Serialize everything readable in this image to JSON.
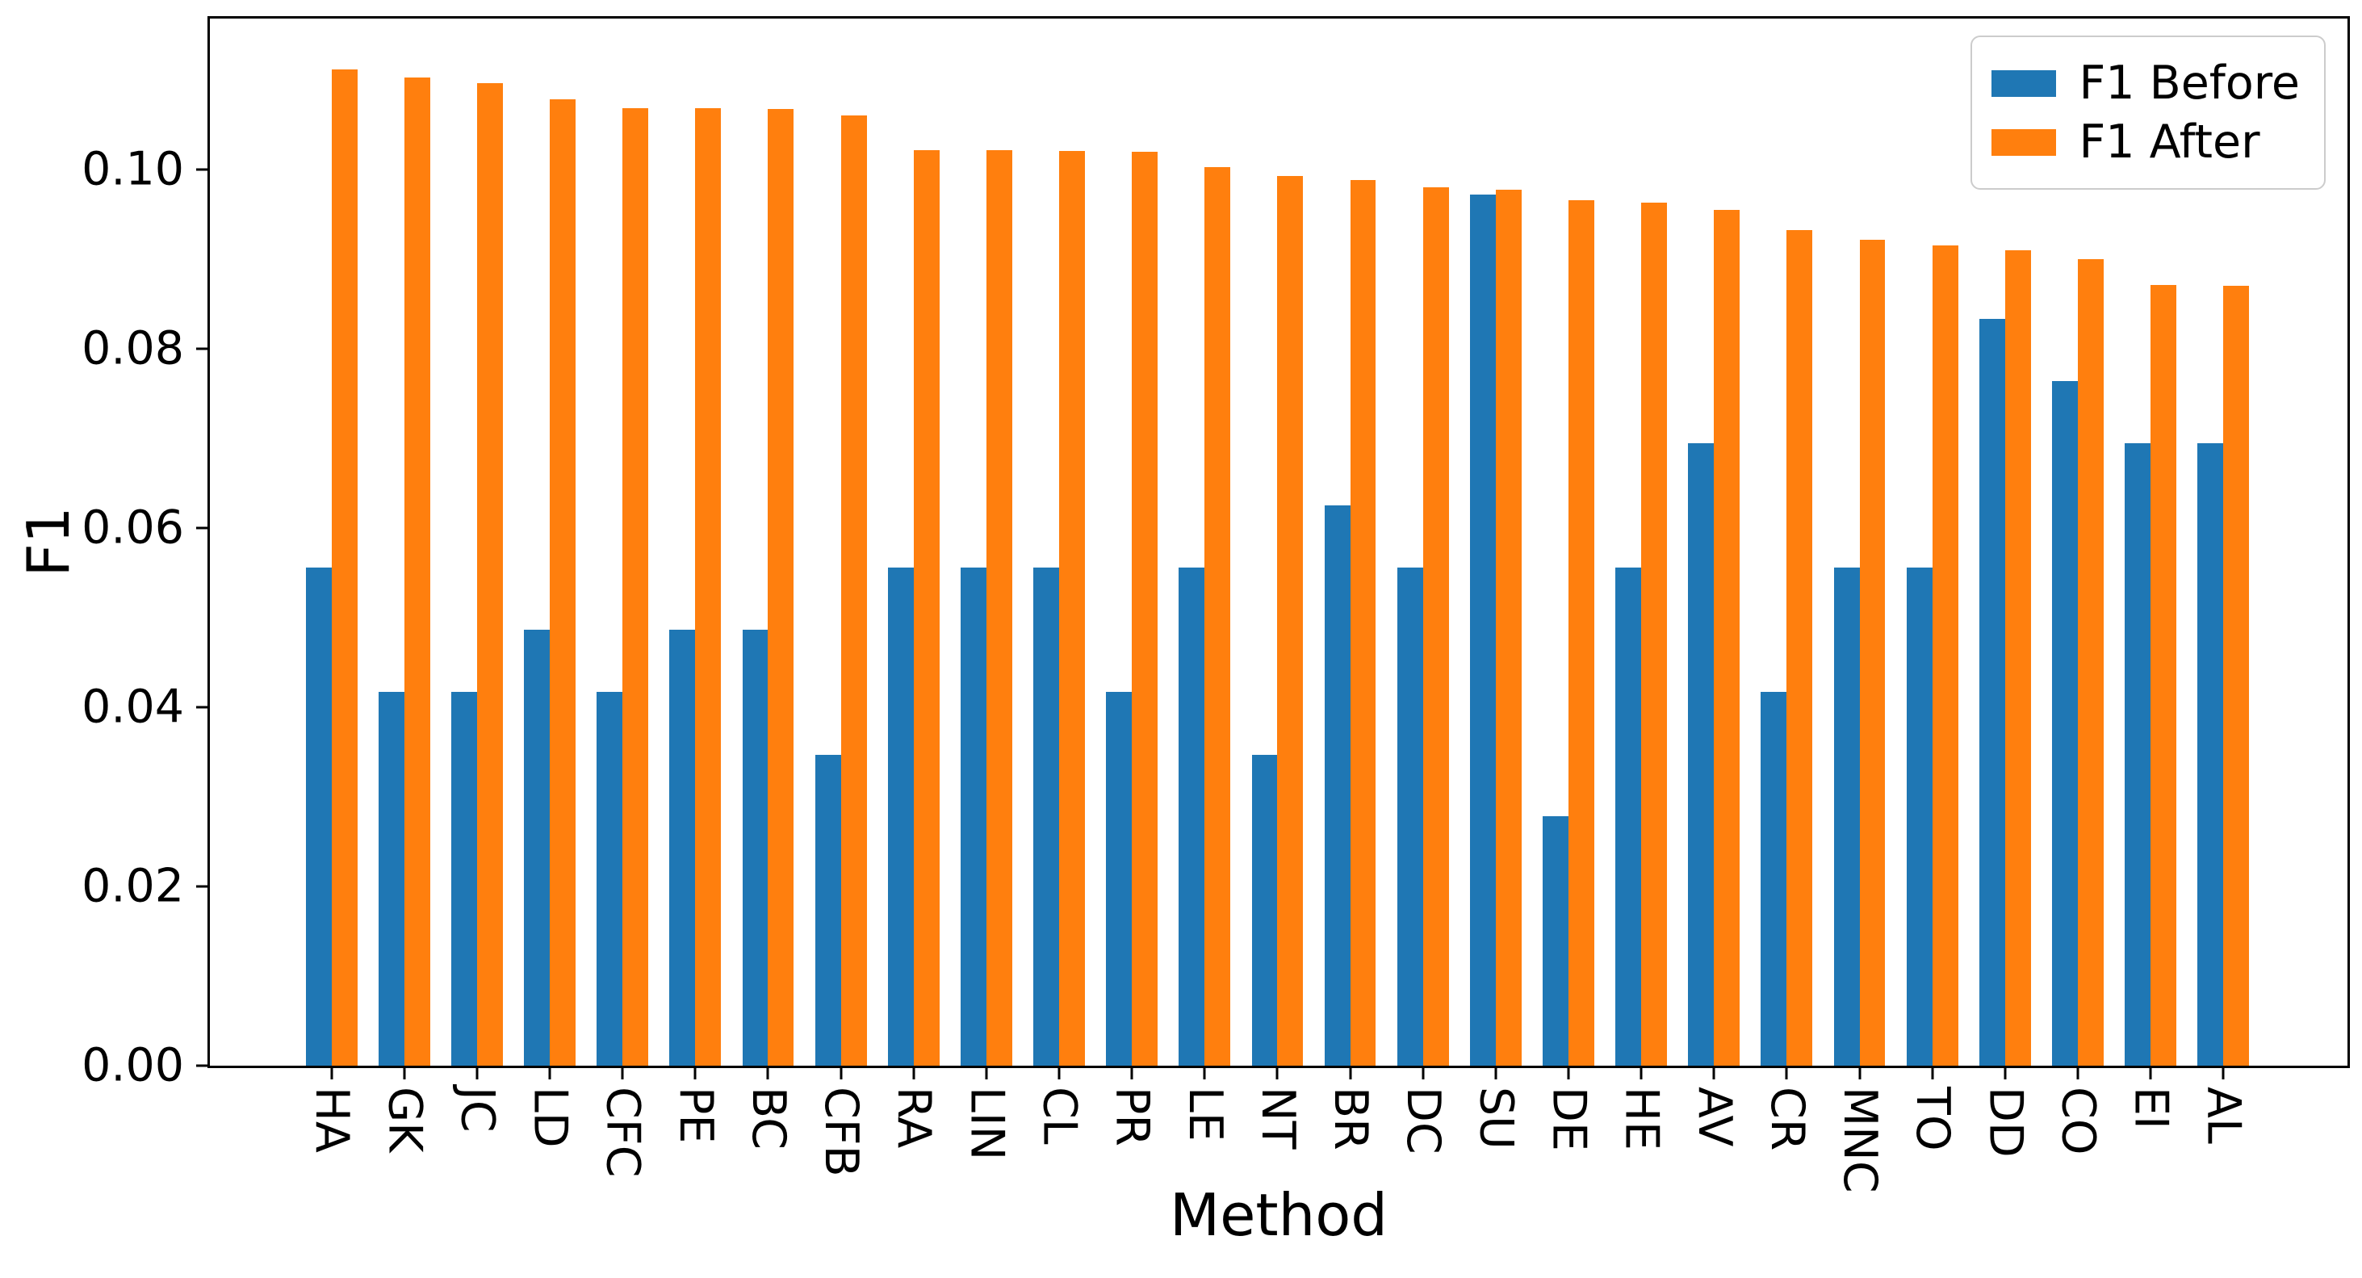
{
  "chart_data": {
    "type": "bar",
    "title": "",
    "xlabel": "Method",
    "ylabel": "F1",
    "categories": [
      "HA",
      "GK",
      "JC",
      "LD",
      "CFC",
      "PE",
      "BC",
      "CFB",
      "RA",
      "LIN",
      "CL",
      "PR",
      "LE",
      "NT",
      "BR",
      "DC",
      "SU",
      "DE",
      "HE",
      "AV",
      "CR",
      "MNC",
      "TO",
      "DD",
      "CO",
      "EI",
      "AL"
    ],
    "series": [
      {
        "name": "F1 Before",
        "color": "#1f77b4",
        "values": [
          0.0556,
          0.0417,
          0.0417,
          0.0486,
          0.0417,
          0.0486,
          0.0486,
          0.0347,
          0.0556,
          0.0556,
          0.0556,
          0.0417,
          0.0556,
          0.0347,
          0.0625,
          0.0556,
          0.0972,
          0.0278,
          0.0556,
          0.0694,
          0.0417,
          0.0556,
          0.0556,
          0.0833,
          0.0764,
          0.0694,
          0.0694
        ]
      },
      {
        "name": "F1 After",
        "color": "#ff7f0e",
        "values": [
          0.1111,
          0.1102,
          0.1096,
          0.1078,
          0.1068,
          0.1068,
          0.1067,
          0.106,
          0.1021,
          0.1021,
          0.102,
          0.1019,
          0.1002,
          0.0992,
          0.0988,
          0.098,
          0.0977,
          0.0965,
          0.0963,
          0.0955,
          0.0932,
          0.0921,
          0.0915,
          0.091,
          0.09,
          0.0871,
          0.087
        ]
      }
    ],
    "ylim": [
      0,
      0.1168
    ],
    "yticks": [
      "0.00",
      "0.02",
      "0.04",
      "0.06",
      "0.08",
      "0.10"
    ],
    "grid": false,
    "legend_position": "upper right",
    "x_tick_label_rotation": 90
  }
}
